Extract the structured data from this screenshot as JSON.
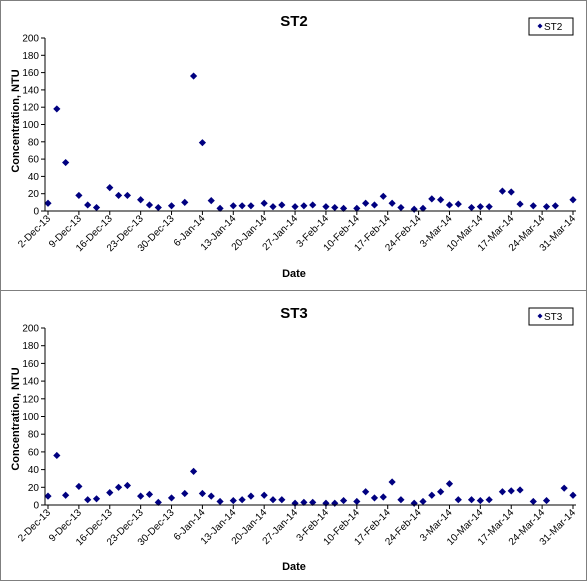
{
  "chart_data": [
    {
      "type": "scatter",
      "title": "ST2",
      "xlabel": "Date",
      "ylabel": "Concentration, NTU",
      "ylim": [
        0,
        200
      ],
      "yticks": [
        0,
        20,
        40,
        60,
        80,
        100,
        120,
        140,
        160,
        180,
        200
      ],
      "xlim": [
        "2013-12-02",
        "2014-03-31"
      ],
      "xtick_labels": [
        "2-Dec-13",
        "9-Dec-13",
        "16-Dec-13",
        "23-Dec-13",
        "30-Dec-13",
        "6-Jan-14",
        "13-Jan-14",
        "20-Jan-14",
        "27-Jan-14",
        "3-Feb-14",
        "10-Feb-14",
        "17-Feb-14",
        "24-Feb-14",
        "3-Mar-14",
        "10-Mar-14",
        "17-Mar-14",
        "24-Mar-14",
        "31-Mar-14"
      ],
      "xtick_dates": [
        "2013-12-02",
        "2013-12-09",
        "2013-12-16",
        "2013-12-23",
        "2013-12-30",
        "2014-01-06",
        "2014-01-13",
        "2014-01-20",
        "2014-01-27",
        "2014-02-03",
        "2014-02-10",
        "2014-02-17",
        "2014-02-24",
        "2014-03-03",
        "2014-03-10",
        "2014-03-17",
        "2014-03-24",
        "2014-03-31"
      ],
      "legend": "top-right",
      "grid": false,
      "color": "#000080",
      "series": [
        {
          "name": "ST2",
          "points": [
            [
              "2013-12-02",
              9
            ],
            [
              "2013-12-04",
              118
            ],
            [
              "2013-12-06",
              56
            ],
            [
              "2013-12-09",
              18
            ],
            [
              "2013-12-11",
              7
            ],
            [
              "2013-12-13",
              4
            ],
            [
              "2013-12-16",
              27
            ],
            [
              "2013-12-18",
              18
            ],
            [
              "2013-12-20",
              18
            ],
            [
              "2013-12-23",
              13
            ],
            [
              "2013-12-25",
              7
            ],
            [
              "2013-12-27",
              4
            ],
            [
              "2013-12-30",
              6
            ],
            [
              "2014-01-02",
              10
            ],
            [
              "2014-01-04",
              156
            ],
            [
              "2014-01-06",
              79
            ],
            [
              "2014-01-08",
              12
            ],
            [
              "2014-01-10",
              3
            ],
            [
              "2014-01-13",
              6
            ],
            [
              "2014-01-15",
              6
            ],
            [
              "2014-01-17",
              6
            ],
            [
              "2014-01-20",
              9
            ],
            [
              "2014-01-22",
              5
            ],
            [
              "2014-01-24",
              7
            ],
            [
              "2014-01-27",
              5
            ],
            [
              "2014-01-29",
              6
            ],
            [
              "2014-01-31",
              7
            ],
            [
              "2014-02-03",
              5
            ],
            [
              "2014-02-05",
              4
            ],
            [
              "2014-02-07",
              3
            ],
            [
              "2014-02-10",
              3
            ],
            [
              "2014-02-12",
              9
            ],
            [
              "2014-02-14",
              7
            ],
            [
              "2014-02-16",
              17
            ],
            [
              "2014-02-18",
              9
            ],
            [
              "2014-02-20",
              4
            ],
            [
              "2014-02-23",
              2
            ],
            [
              "2014-02-25",
              3
            ],
            [
              "2014-02-27",
              14
            ],
            [
              "2014-03-01",
              13
            ],
            [
              "2014-03-03",
              7
            ],
            [
              "2014-03-05",
              8
            ],
            [
              "2014-03-08",
              4
            ],
            [
              "2014-03-10",
              5
            ],
            [
              "2014-03-12",
              5
            ],
            [
              "2014-03-15",
              23
            ],
            [
              "2014-03-17",
              22
            ],
            [
              "2014-03-19",
              8
            ],
            [
              "2014-03-22",
              6
            ],
            [
              "2014-03-25",
              5
            ],
            [
              "2014-03-27",
              6
            ],
            [
              "2014-03-31",
              13
            ]
          ]
        }
      ]
    },
    {
      "type": "scatter",
      "title": "ST3",
      "xlabel": "Date",
      "ylabel": "Concentration, NTU",
      "ylim": [
        0,
        200
      ],
      "yticks": [
        0,
        20,
        40,
        60,
        80,
        100,
        120,
        140,
        160,
        180,
        200
      ],
      "xlim": [
        "2013-12-02",
        "2014-03-31"
      ],
      "xtick_labels": [
        "2-Dec-13",
        "9-Dec-13",
        "16-Dec-13",
        "23-Dec-13",
        "30-Dec-13",
        "6-Jan-14",
        "13-Jan-14",
        "20-Jan-14",
        "27-Jan-14",
        "3-Feb-14",
        "10-Feb-14",
        "17-Feb-14",
        "24-Feb-14",
        "3-Mar-14",
        "10-Mar-14",
        "17-Mar-14",
        "24-Mar-14",
        "31-Mar-14"
      ],
      "xtick_dates": [
        "2013-12-02",
        "2013-12-09",
        "2013-12-16",
        "2013-12-23",
        "2013-12-30",
        "2014-01-06",
        "2014-01-13",
        "2014-01-20",
        "2014-01-27",
        "2014-02-03",
        "2014-02-10",
        "2014-02-17",
        "2014-02-24",
        "2014-03-03",
        "2014-03-10",
        "2014-03-17",
        "2014-03-24",
        "2014-03-31"
      ],
      "legend": "top-right",
      "grid": false,
      "color": "#000080",
      "series": [
        {
          "name": "ST3",
          "points": [
            [
              "2013-12-02",
              10
            ],
            [
              "2013-12-04",
              56
            ],
            [
              "2013-12-06",
              11
            ],
            [
              "2013-12-09",
              21
            ],
            [
              "2013-12-11",
              6
            ],
            [
              "2013-12-13",
              7
            ],
            [
              "2013-12-16",
              14
            ],
            [
              "2013-12-18",
              20
            ],
            [
              "2013-12-20",
              22
            ],
            [
              "2013-12-23",
              10
            ],
            [
              "2013-12-25",
              12
            ],
            [
              "2013-12-27",
              3
            ],
            [
              "2013-12-30",
              8
            ],
            [
              "2014-01-02",
              13
            ],
            [
              "2014-01-04",
              38
            ],
            [
              "2014-01-06",
              13
            ],
            [
              "2014-01-08",
              10
            ],
            [
              "2014-01-10",
              4
            ],
            [
              "2014-01-13",
              5
            ],
            [
              "2014-01-15",
              6
            ],
            [
              "2014-01-17",
              10
            ],
            [
              "2014-01-20",
              11
            ],
            [
              "2014-01-22",
              6
            ],
            [
              "2014-01-24",
              6
            ],
            [
              "2014-01-27",
              2
            ],
            [
              "2014-01-29",
              3
            ],
            [
              "2014-01-31",
              3
            ],
            [
              "2014-02-03",
              2
            ],
            [
              "2014-02-05",
              2
            ],
            [
              "2014-02-07",
              5
            ],
            [
              "2014-02-10",
              4
            ],
            [
              "2014-02-12",
              15
            ],
            [
              "2014-02-14",
              8
            ],
            [
              "2014-02-16",
              9
            ],
            [
              "2014-02-18",
              26
            ],
            [
              "2014-02-20",
              6
            ],
            [
              "2014-02-23",
              2
            ],
            [
              "2014-02-25",
              4
            ],
            [
              "2014-02-27",
              11
            ],
            [
              "2014-03-01",
              15
            ],
            [
              "2014-03-03",
              24
            ],
            [
              "2014-03-05",
              6
            ],
            [
              "2014-03-08",
              6
            ],
            [
              "2014-03-10",
              5
            ],
            [
              "2014-03-12",
              6
            ],
            [
              "2014-03-15",
              15
            ],
            [
              "2014-03-17",
              16
            ],
            [
              "2014-03-19",
              17
            ],
            [
              "2014-03-22",
              4
            ],
            [
              "2014-03-25",
              5
            ],
            [
              "2014-03-29",
              19
            ],
            [
              "2014-03-31",
              11
            ]
          ]
        }
      ]
    }
  ]
}
